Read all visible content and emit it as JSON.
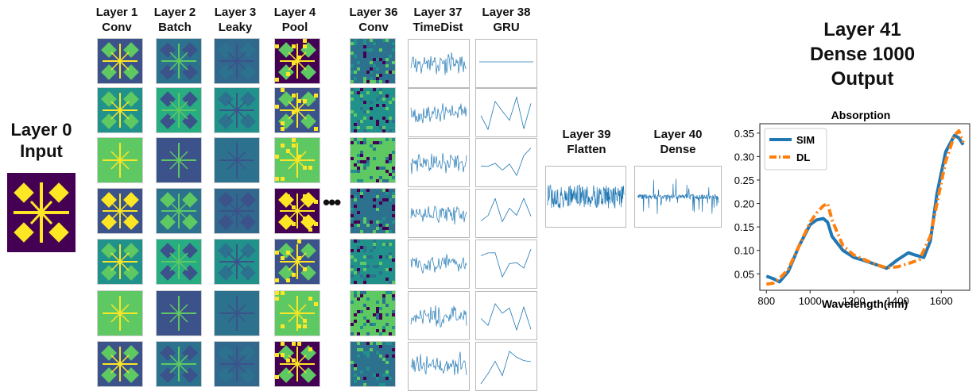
{
  "layers": {
    "input": {
      "line1": "Layer 0",
      "line2": "Input"
    },
    "l1": {
      "line1": "Layer 1",
      "line2": "Conv"
    },
    "l2": {
      "line1": "Layer 2",
      "line2": "Batch"
    },
    "l3": {
      "line1": "Layer 3",
      "line2": "Leaky"
    },
    "l4": {
      "line1": "Layer 4",
      "line2": "Pool"
    },
    "l36": {
      "line1": "Layer 36",
      "line2": "Conv"
    },
    "l37": {
      "line1": "Layer 37",
      "line2": "TimeDist"
    },
    "l38": {
      "line1": "Layer 38",
      "line2": "GRU"
    },
    "l39": {
      "line1": "Layer 39",
      "line2": "Flatten"
    },
    "l40": {
      "line1": "Layer 40",
      "line2": "Dense"
    },
    "l41": {
      "line1": "Layer 41",
      "line2": "Dense 1000",
      "line3": "Output"
    }
  },
  "ellipsis": "•••",
  "colors": {
    "sim": "#1f77b4",
    "dl": "#ff7f0e",
    "viridis_dark": "#440154",
    "viridis_mid": "#21918c",
    "viridis_yellow": "#fde725"
  },
  "chart_data": {
    "type": "line",
    "title": "Absorption",
    "xlabel": "Wavelength(nm)",
    "ylabel": "",
    "xlim": [
      770,
      1730
    ],
    "ylim": [
      0.015,
      0.37
    ],
    "xticks": [
      800,
      1000,
      1200,
      1400,
      1600
    ],
    "yticks": [
      0.05,
      0.1,
      0.15,
      0.2,
      0.25,
      0.3,
      0.35
    ],
    "legend_position": "top-left",
    "series": [
      {
        "name": "SIM",
        "style": "solid",
        "x": [
          800,
          830,
          860,
          900,
          950,
          1000,
          1030,
          1060,
          1080,
          1100,
          1150,
          1200,
          1250,
          1300,
          1350,
          1400,
          1450,
          1480,
          1520,
          1550,
          1580,
          1620,
          1660,
          1680,
          1700
        ],
        "y": [
          0.045,
          0.04,
          0.033,
          0.055,
          0.11,
          0.155,
          0.165,
          0.168,
          0.16,
          0.13,
          0.1,
          0.085,
          0.078,
          0.07,
          0.062,
          0.08,
          0.095,
          0.09,
          0.085,
          0.12,
          0.22,
          0.31,
          0.345,
          0.34,
          0.325
        ]
      },
      {
        "name": "DL",
        "style": "dashdot",
        "x": [
          800,
          830,
          860,
          900,
          950,
          1000,
          1030,
          1060,
          1080,
          1100,
          1150,
          1200,
          1250,
          1300,
          1350,
          1400,
          1450,
          1500,
          1550,
          1580,
          1620,
          1660,
          1680,
          1700
        ],
        "y": [
          0.028,
          0.03,
          0.04,
          0.06,
          0.11,
          0.16,
          0.18,
          0.195,
          0.2,
          0.165,
          0.11,
          0.09,
          0.08,
          0.07,
          0.063,
          0.065,
          0.072,
          0.08,
          0.13,
          0.2,
          0.29,
          0.345,
          0.355,
          0.33
        ]
      }
    ]
  }
}
